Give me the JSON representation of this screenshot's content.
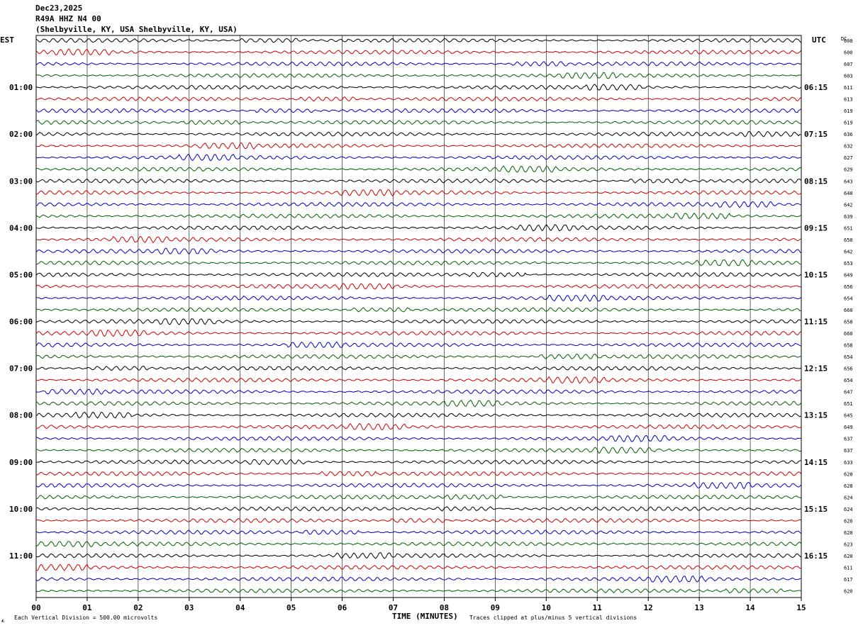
{
  "header": {
    "date": "Dec23,2025",
    "station": "R49A HHZ N4 00",
    "location": "(Shelbyville, KY, USA Shelbyville, KY, USA)"
  },
  "left_tz": "EST",
  "right_tz": "UTC",
  "dc_label": "DC",
  "footer": {
    "scale_note": "Each Vertical Division =  500.00 microvolts",
    "x_title": "TIME (MINUTES)",
    "clip_note": "Traces clipped at plus/minus 5 vertical divisions"
  },
  "colors": {
    "trace_cycle": [
      "#000000",
      "#d00000",
      "#0000c0",
      "#006000"
    ],
    "grid": "#000000",
    "background": "#ffffff"
  },
  "chart_data": {
    "type": "line",
    "subtype": "helicorder",
    "x_unit": "minutes",
    "xlim": [
      0,
      15
    ],
    "x_ticks": [
      "00",
      "01",
      "02",
      "03",
      "04",
      "05",
      "06",
      "07",
      "08",
      "09",
      "10",
      "11",
      "12",
      "13",
      "14",
      "15"
    ],
    "row_count": 48,
    "row_minutes": 15,
    "left_hour_labels": [
      "01:00",
      "02:00",
      "03:00",
      "04:00",
      "05:00",
      "06:00",
      "07:00",
      "08:00",
      "09:00",
      "10:00",
      "11:00"
    ],
    "right_hour_labels": [
      "06:15",
      "07:15",
      "08:15",
      "09:15",
      "10:15",
      "11:15",
      "12:15",
      "13:15",
      "14:15",
      "15:15",
      "16:15"
    ],
    "dc_offsets": [
      608,
      600,
      607,
      603,
      611,
      613,
      619,
      619,
      636,
      632,
      627,
      629,
      643,
      640,
      642,
      639,
      651,
      650,
      642,
      653,
      649,
      656,
      654,
      660,
      658,
      660,
      658,
      654,
      656,
      654,
      647,
      651,
      645,
      649,
      637,
      637,
      633,
      628,
      628,
      624,
      624,
      620,
      620,
      623,
      620,
      611,
      617,
      620
    ],
    "vertical_division_microvolts": 500.0,
    "clip_divisions": 5,
    "grid": true
  }
}
